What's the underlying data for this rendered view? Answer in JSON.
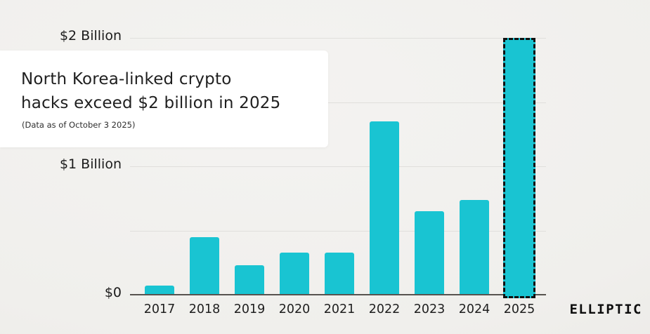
{
  "title_card": {
    "title_line1": "North Korea-linked crypto",
    "title_line2": "hacks exceed $2 billion in 2025",
    "subtitle": "(Data as of October 3 2025)"
  },
  "branding": {
    "logo_text": "ELLIPTIC"
  },
  "colors": {
    "bar": "#19c4d2",
    "highlight_border": "#101010",
    "background": "#f0efec",
    "card": "#ffffff",
    "gridline": "#e0dfdc",
    "axis": "#57534f"
  },
  "chart_data": {
    "type": "bar",
    "title": "North Korea-linked crypto hacks exceed $2 billion in 2025",
    "subtitle": "(Data as of October 3 2025)",
    "categories": [
      "2017",
      "2018",
      "2019",
      "2020",
      "2021",
      "2022",
      "2023",
      "2024",
      "2025"
    ],
    "values": [
      0.07,
      0.45,
      0.23,
      0.33,
      0.33,
      1.35,
      0.65,
      0.74,
      2.0
    ],
    "unit": "USD billions",
    "xlabel": "",
    "ylabel": "",
    "ylim": [
      0,
      2
    ],
    "ytick_step": 0.5,
    "yticks": [
      {
        "value": 0,
        "label": "$0"
      },
      {
        "value": 1,
        "label": "$1 Billion"
      },
      {
        "value": 2,
        "label": "$2 Billion"
      }
    ],
    "grid": true,
    "legend": false,
    "highlight": {
      "category": "2025",
      "style": "dashed-outline"
    }
  }
}
